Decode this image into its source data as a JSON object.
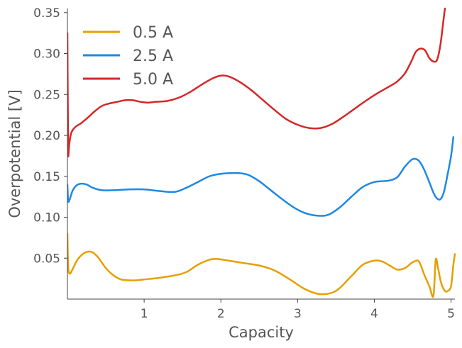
{
  "chart_data": {
    "type": "line",
    "xlabel": "Capacity",
    "ylabel": "Overpotential [V]",
    "xlim": [
      0,
      5.05
    ],
    "ylim": [
      0.0,
      0.355
    ],
    "xticks": [
      1,
      2,
      3,
      4,
      5
    ],
    "yticks": [
      0.05,
      0.1,
      0.15,
      0.2,
      0.25,
      0.3,
      0.35
    ],
    "ytick_labels": [
      "0.05",
      "0.10",
      "0.15",
      "0.20",
      "0.25",
      "0.30",
      "0.35"
    ],
    "xtick_labels": [
      "1",
      "2",
      "3",
      "4",
      "5"
    ],
    "grid": false,
    "legend_position": "top-left",
    "series": [
      {
        "name": "0.5 A",
        "color": "#E69F00",
        "x": [
          0.0,
          0.01,
          0.03,
          0.07,
          0.13,
          0.2,
          0.27,
          0.33,
          0.4,
          0.5,
          0.6,
          0.7,
          0.8,
          0.9,
          1.0,
          1.2,
          1.4,
          1.55,
          1.7,
          1.85,
          1.95,
          2.1,
          2.3,
          2.5,
          2.7,
          2.9,
          3.1,
          3.3,
          3.5,
          3.7,
          3.85,
          4.0,
          4.1,
          4.2,
          4.3,
          4.4,
          4.5,
          4.58,
          4.65,
          4.72,
          4.77,
          4.8,
          4.83,
          4.87,
          4.92,
          4.96,
          5.0,
          5.03,
          5.05
        ],
        "y": [
          0.08,
          0.04,
          0.031,
          0.037,
          0.048,
          0.055,
          0.058,
          0.057,
          0.051,
          0.038,
          0.029,
          0.024,
          0.023,
          0.023,
          0.024,
          0.026,
          0.029,
          0.033,
          0.042,
          0.048,
          0.049,
          0.047,
          0.044,
          0.041,
          0.035,
          0.024,
          0.012,
          0.006,
          0.01,
          0.028,
          0.042,
          0.047,
          0.046,
          0.041,
          0.036,
          0.038,
          0.045,
          0.046,
          0.03,
          0.015,
          0.004,
          0.048,
          0.038,
          0.02,
          0.01,
          0.01,
          0.016,
          0.042,
          0.055
        ]
      },
      {
        "name": "2.5 A",
        "color": "#1E88E5",
        "x": [
          0.0,
          0.01,
          0.03,
          0.07,
          0.12,
          0.18,
          0.25,
          0.33,
          0.45,
          0.6,
          0.8,
          1.0,
          1.2,
          1.4,
          1.55,
          1.7,
          1.85,
          2.0,
          2.2,
          2.35,
          2.5,
          2.65,
          2.8,
          2.95,
          3.1,
          3.25,
          3.4,
          3.55,
          3.7,
          3.85,
          4.0,
          4.1,
          4.2,
          4.3,
          4.4,
          4.5,
          4.58,
          4.65,
          4.72,
          4.78,
          4.83,
          4.87,
          4.91,
          4.95,
          5.0,
          5.03
        ],
        "y": [
          0.14,
          0.12,
          0.122,
          0.133,
          0.139,
          0.141,
          0.14,
          0.136,
          0.133,
          0.133,
          0.134,
          0.134,
          0.132,
          0.131,
          0.136,
          0.143,
          0.15,
          0.153,
          0.154,
          0.152,
          0.144,
          0.133,
          0.122,
          0.112,
          0.105,
          0.102,
          0.103,
          0.112,
          0.125,
          0.137,
          0.143,
          0.144,
          0.145,
          0.149,
          0.162,
          0.171,
          0.169,
          0.158,
          0.142,
          0.128,
          0.122,
          0.123,
          0.132,
          0.15,
          0.175,
          0.198
        ]
      },
      {
        "name": "5.0 A",
        "color": "#D62728",
        "x": [
          0.0,
          0.005,
          0.01,
          0.015,
          0.025,
          0.05,
          0.1,
          0.18,
          0.27,
          0.35,
          0.45,
          0.55,
          0.65,
          0.75,
          0.85,
          0.95,
          1.05,
          1.15,
          1.3,
          1.45,
          1.6,
          1.75,
          1.9,
          2.0,
          2.1,
          2.25,
          2.4,
          2.55,
          2.7,
          2.85,
          3.0,
          3.15,
          3.3,
          3.45,
          3.6,
          3.75,
          3.9,
          4.05,
          4.2,
          4.3,
          4.4,
          4.48,
          4.54,
          4.6,
          4.66,
          4.72,
          4.78,
          4.82,
          4.86,
          4.9,
          4.92
        ],
        "y": [
          0.325,
          0.24,
          0.18,
          0.178,
          0.19,
          0.203,
          0.21,
          0.215,
          0.222,
          0.229,
          0.236,
          0.239,
          0.241,
          0.243,
          0.243,
          0.241,
          0.24,
          0.241,
          0.242,
          0.246,
          0.253,
          0.262,
          0.27,
          0.273,
          0.272,
          0.265,
          0.255,
          0.243,
          0.231,
          0.22,
          0.213,
          0.209,
          0.209,
          0.214,
          0.223,
          0.233,
          0.243,
          0.252,
          0.26,
          0.266,
          0.276,
          0.29,
          0.302,
          0.306,
          0.304,
          0.294,
          0.29,
          0.293,
          0.31,
          0.34,
          0.355
        ]
      }
    ]
  }
}
